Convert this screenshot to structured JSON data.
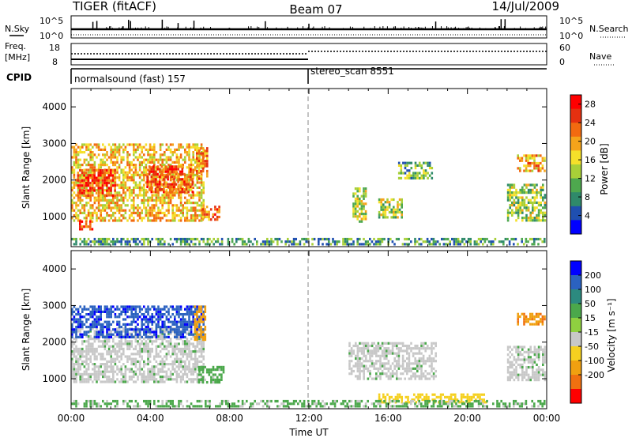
{
  "header": {
    "radar": "TIGER (fitACF)",
    "beam": "Beam 07",
    "date": "14/Jul/2009"
  },
  "side_labels": {
    "nsky": "N.Sky",
    "nsearch": "N.Search",
    "freq_line1": "Freq.",
    "freq_line2": "[MHz]",
    "nave": "Nave",
    "cpid": "CPID"
  },
  "noise_axis": {
    "top": "10^5",
    "bottom": "10^0"
  },
  "freq_axis": {
    "left_top": "18",
    "left_bottom": "8",
    "right_top": "60",
    "right_bottom": "0"
  },
  "cpid_modes": [
    {
      "label": "normalsound (fast) 157",
      "start_hour": 0
    },
    {
      "label": "stereo_scan 8551",
      "start_hour": 12
    }
  ],
  "colors": {
    "power_scale": [
      "#0000ff",
      "#1f4fb0",
      "#2f8a6a",
      "#4ea84e",
      "#a8d038",
      "#f5e02a",
      "#f5a31a",
      "#f26a10",
      "#e53010",
      "#ff0000"
    ],
    "velocity_scale": [
      "#0000ff",
      "#2b62c0",
      "#2c8a7f",
      "#4ba84b",
      "#8fd040",
      "#c8c8c8",
      "#f5d020",
      "#f0a010",
      "#f07010",
      "#ff0000"
    ],
    "ground_scatter": "#c8c8c8"
  },
  "chart_data": [
    {
      "type": "heatmap",
      "name": "power",
      "ylabel": "Slant Range [km]",
      "x_range_hours": [
        0,
        24
      ],
      "ylim": [
        180,
        4500
      ],
      "yticks": [
        "1000",
        "2000",
        "3000",
        "4000"
      ],
      "colorbar": {
        "label": "Power [dB]",
        "ticks": [
          "4",
          "8",
          "12",
          "16",
          "20",
          "24",
          "28"
        ],
        "range": [
          0,
          30
        ]
      },
      "regions": [
        {
          "t0": 0.0,
          "t1": 6.8,
          "r0": 800,
          "r1": 3000,
          "level": 18
        },
        {
          "t0": 0.3,
          "t1": 2.3,
          "r0": 1500,
          "r1": 2300,
          "level": 25
        },
        {
          "t0": 3.8,
          "t1": 6.2,
          "r0": 1600,
          "r1": 2400,
          "level": 24
        },
        {
          "t0": 6.6,
          "t1": 7.6,
          "r0": 850,
          "r1": 1300,
          "level": 22
        },
        {
          "t0": 6.3,
          "t1": 7.0,
          "r0": 2000,
          "r1": 2900,
          "level": 21
        },
        {
          "t0": 0.4,
          "t1": 1.2,
          "r0": 600,
          "r1": 900,
          "level": 25
        },
        {
          "t0": 14.2,
          "t1": 15.0,
          "r0": 800,
          "r1": 1800,
          "level": 15
        },
        {
          "t0": 15.5,
          "t1": 16.8,
          "r0": 900,
          "r1": 1500,
          "level": 14
        },
        {
          "t0": 16.5,
          "t1": 18.3,
          "r0": 2000,
          "r1": 2500,
          "level": 11
        },
        {
          "t0": 22.0,
          "t1": 24.0,
          "r0": 800,
          "r1": 1900,
          "level": 13
        },
        {
          "t0": 22.5,
          "t1": 24.0,
          "r0": 2200,
          "r1": 2700,
          "level": 19
        },
        {
          "t0": 0.0,
          "t1": 24.0,
          "r0": 200,
          "r1": 420,
          "level": 9
        }
      ]
    },
    {
      "type": "heatmap",
      "name": "velocity",
      "ylabel": "Slant Range [km]",
      "xlabel": "Time UT",
      "x_range_hours": [
        0,
        24
      ],
      "xticks": [
        "00:00",
        "04:00",
        "08:00",
        "12:00",
        "16:00",
        "20:00",
        "00:00"
      ],
      "ylim": [
        180,
        4500
      ],
      "yticks": [
        "1000",
        "2000",
        "3000",
        "4000"
      ],
      "colorbar": {
        "label": "Velocity [m s⁻¹]",
        "ticks": [
          "200",
          "100",
          "50",
          "15",
          "-15",
          "-50",
          "-100",
          "-200"
        ]
      },
      "regions": [
        {
          "t0": 0.0,
          "t1": 6.8,
          "r0": 850,
          "r1": 2400,
          "level": 0
        },
        {
          "t0": 0.0,
          "t1": 6.8,
          "r0": 2100,
          "r1": 3000,
          "level": 190
        },
        {
          "t0": 6.2,
          "t1": 6.9,
          "r0": 2000,
          "r1": 3000,
          "level": -180
        },
        {
          "t0": 6.4,
          "t1": 7.8,
          "r0": 850,
          "r1": 1350,
          "level": 30
        },
        {
          "t0": 14.0,
          "t1": 18.5,
          "r0": 900,
          "r1": 2000,
          "level": 0
        },
        {
          "t0": 15.5,
          "t1": 21.0,
          "r0": 300,
          "r1": 600,
          "level": -70
        },
        {
          "t0": 22.0,
          "t1": 24.0,
          "r0": 900,
          "r1": 1900,
          "level": 0
        },
        {
          "t0": 22.5,
          "t1": 24.0,
          "r0": 2400,
          "r1": 2800,
          "level": -190
        },
        {
          "t0": 0.0,
          "t1": 24.0,
          "r0": 200,
          "r1": 420,
          "level": 25
        }
      ]
    }
  ]
}
